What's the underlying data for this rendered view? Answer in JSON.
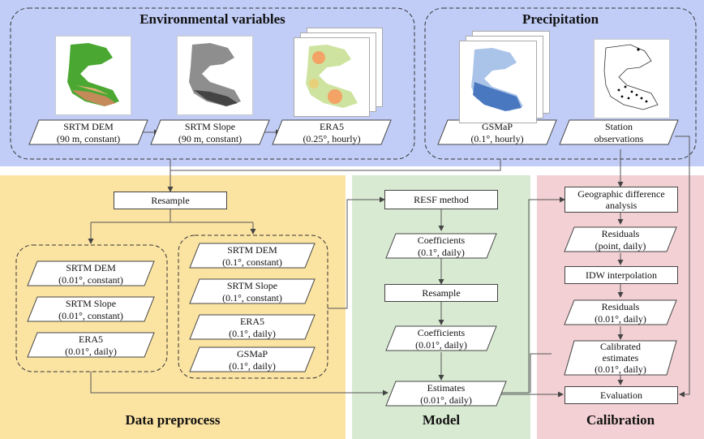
{
  "colors": {
    "top_bg": "#c1cdf7",
    "preprocess_bg": "#fbe3a2",
    "model_bg": "#d9ead3",
    "calibration_bg": "#f2d0d3"
  },
  "sections": {
    "environmental": "Environmental variables",
    "precipitation": "Precipitation",
    "preprocess": "Data preprocess",
    "model": "Model",
    "calibration": "Calibration"
  },
  "top_inputs": [
    {
      "line1": "SRTM DEM",
      "line2": "(90 m, constant)"
    },
    {
      "line1": "SRTM Slope",
      "line2": "(90 m, constant)"
    },
    {
      "line1": "ERA5",
      "line2": "(0.25°, hourly)"
    },
    {
      "line1": "GSMaP",
      "line2": "(0.1°, hourly)"
    },
    {
      "line1": "Station",
      "line2": "observations"
    }
  ],
  "preprocess": {
    "resample": "Resample",
    "left_group": [
      {
        "line1": "SRTM DEM",
        "line2": "(0.01°, constant)"
      },
      {
        "line1": "SRTM Slope",
        "line2": "(0.01°, constant)"
      },
      {
        "line1": "ERA5",
        "line2": "(0.01°, daily)"
      }
    ],
    "right_group": [
      {
        "line1": "SRTM DEM",
        "line2": "(0.1°, constant)"
      },
      {
        "line1": "SRTM Slope",
        "line2": "(0.1°, constant)"
      },
      {
        "line1": "ERA5",
        "line2": "(0.1°, daily)"
      },
      {
        "line1": "GSMaP",
        "line2": "(0.1°, daily)"
      }
    ]
  },
  "model": {
    "resf": "RESF method",
    "coef1": {
      "line1": "Coefficients",
      "line2": "(0.1°, daily)"
    },
    "resample": "Resample",
    "coef2": {
      "line1": "Coefficients",
      "line2": "(0.01°, daily)"
    },
    "estimates": {
      "line1": "Estimates",
      "line2": "(0.01°, daily)"
    }
  },
  "calibration": {
    "geo_diff": {
      "line1": "Geographic difference",
      "line2": "analysis"
    },
    "residuals1": {
      "line1": "Residuals",
      "line2": "(point, daily)"
    },
    "idw": "IDW interpolation",
    "residuals2": {
      "line1": "Residuals",
      "line2": "(0.01°, daily)"
    },
    "calibrated": {
      "line1": "Calibrated",
      "line2": "estimates",
      "line3": "(0.01°, daily)"
    },
    "evaluation": "Evaluation"
  }
}
